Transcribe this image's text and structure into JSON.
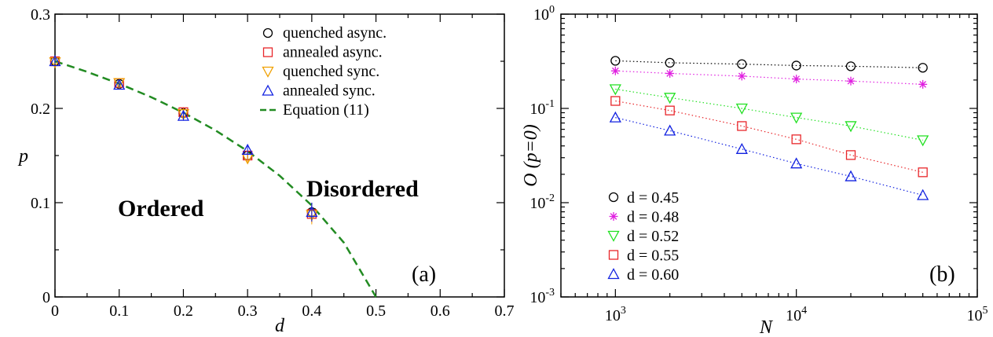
{
  "chart_data": [
    {
      "type": "scatter",
      "panel_label": "(a)",
      "xlabel": "d",
      "ylabel": "p",
      "xlim": [
        0,
        0.7
      ],
      "ylim": [
        0,
        0.3
      ],
      "xticks": [
        "0",
        "0.1",
        "0.2",
        "0.3",
        "0.4",
        "0.5",
        "0.6",
        "0.7"
      ],
      "yticks": [
        "0",
        "0.1",
        "0.2",
        "0.3"
      ],
      "region_labels": [
        "Ordered",
        "Disordered"
      ],
      "legend_position": "top-right",
      "series": [
        {
          "name": "quenched async.",
          "marker": "circle",
          "color": "#000000",
          "x": [
            0,
            0.1,
            0.2,
            0.3,
            0.4
          ],
          "y": [
            0.25,
            0.226,
            0.195,
            0.15,
            0.09
          ],
          "err": [
            0.002,
            0.004,
            0.006,
            0.005,
            0.01
          ]
        },
        {
          "name": "annealed async.",
          "marker": "square",
          "color": "#e8262a",
          "x": [
            0,
            0.1,
            0.2,
            0.3,
            0.4
          ],
          "y": [
            0.25,
            0.227,
            0.196,
            0.15,
            0.088
          ],
          "err": [
            0.002,
            0.004,
            0.005,
            0.005,
            0.009
          ]
        },
        {
          "name": "quenched sync.",
          "marker": "triangle-down",
          "color": "#f0a000",
          "x": [
            0,
            0.1,
            0.2,
            0.3,
            0.4
          ],
          "y": [
            0.249,
            0.227,
            0.194,
            0.147,
            0.087
          ],
          "err": [
            0.002,
            0.004,
            0.006,
            0.005,
            0.01
          ]
        },
        {
          "name": "annealed sync.",
          "marker": "triangle-up",
          "color": "#1020e0",
          "x": [
            0,
            0.1,
            0.2,
            0.3,
            0.4
          ],
          "y": [
            0.25,
            0.225,
            0.192,
            0.156,
            0.09
          ],
          "err": [
            0.002,
            0.003,
            0.005,
            0.004,
            0.01
          ]
        },
        {
          "name": "Equation (11)",
          "marker": "dashed-line",
          "color": "#228b22",
          "x": [
            0,
            0.05,
            0.1,
            0.15,
            0.2,
            0.25,
            0.3,
            0.35,
            0.4,
            0.45,
            0.5
          ],
          "y": [
            0.25,
            0.2388,
            0.2262,
            0.2119,
            0.1955,
            0.1767,
            0.1547,
            0.1286,
            0.097,
            0.0576,
            0.0
          ]
        }
      ]
    },
    {
      "type": "line",
      "panel_label": "(b)",
      "xlabel": "N",
      "ylabel": "O (p=0)",
      "xscale": "log",
      "yscale": "log",
      "xlim": [
        500,
        100000
      ],
      "ylim": [
        0.001,
        1
      ],
      "xticks": [
        {
          "base": "10",
          "exp": "3"
        },
        {
          "base": "10",
          "exp": "4"
        },
        {
          "base": "10",
          "exp": "5"
        }
      ],
      "yticks": [
        {
          "base": "10",
          "exp": "-3"
        },
        {
          "base": "10",
          "exp": "-2"
        },
        {
          "base": "10",
          "exp": "-1"
        },
        {
          "base": "10",
          "exp": "0"
        }
      ],
      "legend_position": "bottom-left",
      "x": [
        1000,
        2000,
        5000,
        10000,
        20000,
        50000
      ],
      "series": [
        {
          "name": "d = 0.45",
          "marker": "circle",
          "color": "#000000",
          "values": [
            0.32,
            0.305,
            0.295,
            0.285,
            0.28,
            0.27
          ]
        },
        {
          "name": "d = 0.48",
          "marker": "star",
          "color": "#e020e0",
          "values": [
            0.25,
            0.235,
            0.22,
            0.205,
            0.195,
            0.18
          ]
        },
        {
          "name": "d = 0.52",
          "marker": "triangle-down",
          "color": "#20e020",
          "values": [
            0.16,
            0.13,
            0.1,
            0.08,
            0.065,
            0.046
          ]
        },
        {
          "name": "d = 0.55",
          "marker": "square",
          "color": "#e8262a",
          "values": [
            0.12,
            0.095,
            0.065,
            0.047,
            0.032,
            0.021
          ]
        },
        {
          "name": "d = 0.60",
          "marker": "triangle-up",
          "color": "#1020e0",
          "values": [
            0.08,
            0.058,
            0.037,
            0.026,
            0.019,
            0.012
          ]
        }
      ]
    }
  ]
}
